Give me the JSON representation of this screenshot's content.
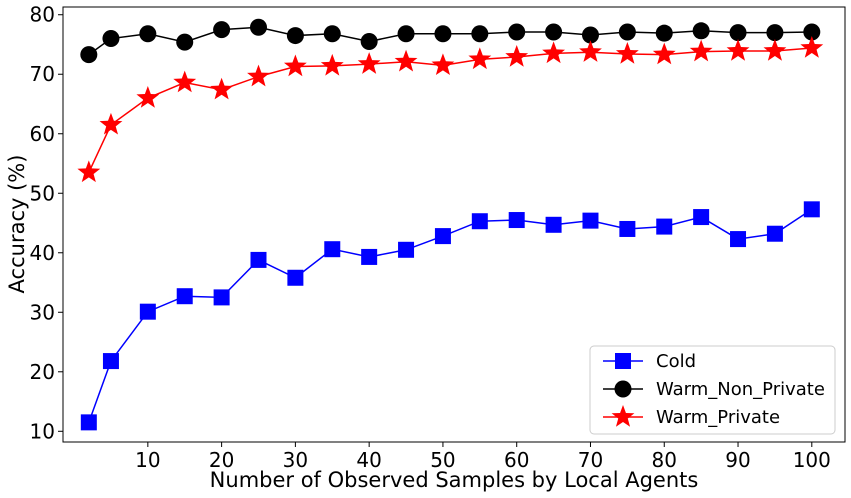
{
  "chart_data": {
    "type": "line",
    "xlabel": "Number of Observed Samples by Local Agents",
    "ylabel": "Accuracy (%)",
    "xlim": [
      -1.5,
      104.5
    ],
    "ylim": [
      8.2,
      81.3
    ],
    "xticks": [
      10,
      20,
      30,
      40,
      50,
      60,
      70,
      80,
      90,
      100
    ],
    "yticks": [
      10,
      20,
      30,
      40,
      50,
      60,
      70,
      80
    ],
    "grid": false,
    "legend_position": "bottom-right",
    "x": [
      2,
      5,
      10,
      15,
      20,
      25,
      30,
      35,
      40,
      45,
      50,
      55,
      60,
      65,
      70,
      75,
      80,
      85,
      90,
      95,
      100
    ],
    "series": [
      {
        "name": "Cold",
        "color": "#0000ff",
        "marker": "square",
        "values": [
          11.5,
          21.8,
          30.1,
          32.7,
          32.5,
          38.8,
          35.8,
          40.6,
          39.3,
          40.5,
          42.8,
          45.3,
          45.5,
          44.7,
          45.4,
          44.0,
          44.4,
          46.0,
          42.3,
          43.2,
          47.3
        ]
      },
      {
        "name": "Warm_Non_Private",
        "color": "#000000",
        "marker": "circle",
        "values": [
          73.3,
          76.0,
          76.8,
          75.4,
          77.5,
          77.9,
          76.5,
          76.8,
          75.5,
          76.8,
          76.8,
          76.8,
          77.1,
          77.1,
          76.6,
          77.1,
          76.9,
          77.3,
          77.0,
          77.0,
          77.1
        ]
      },
      {
        "name": "Warm_Private",
        "color": "#ff0000",
        "marker": "star",
        "values": [
          53.5,
          61.5,
          66.0,
          68.6,
          67.4,
          69.6,
          71.3,
          71.4,
          71.7,
          72.1,
          71.5,
          72.5,
          72.9,
          73.5,
          73.7,
          73.4,
          73.3,
          73.8,
          73.9,
          73.9,
          74.4
        ]
      }
    ]
  }
}
